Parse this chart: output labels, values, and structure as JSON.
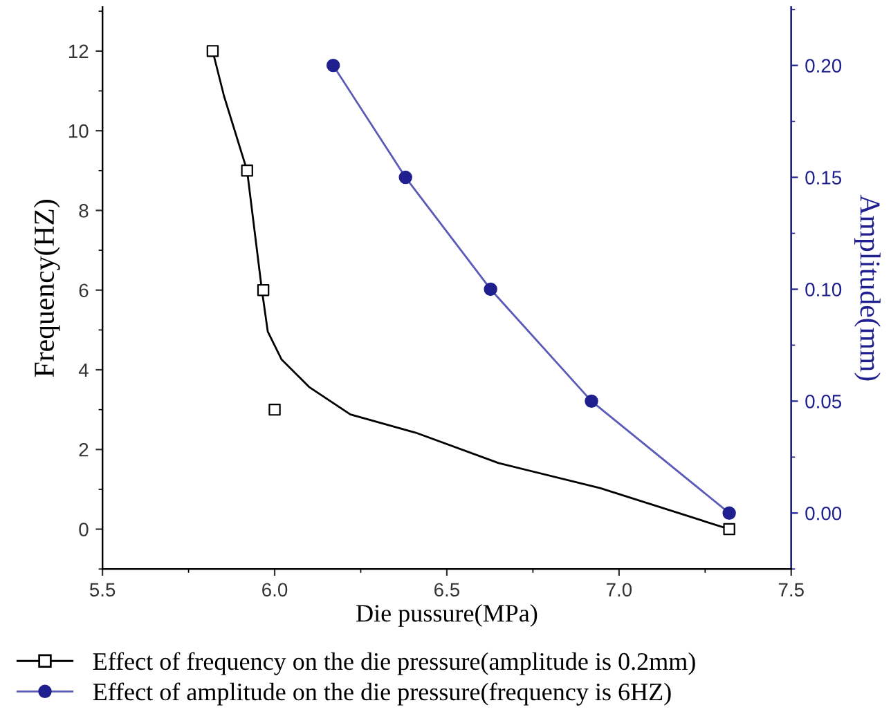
{
  "chart_data": {
    "type": "scatter",
    "xlabel": "Die pussure(MPa)",
    "ylabel": "Frequency(HZ)",
    "y2label": "Amplitude(mm)",
    "xlim": [
      5.5,
      7.5
    ],
    "xticks": [
      {
        "value": 5.5,
        "label": "5.5"
      },
      {
        "value": 6.0,
        "label": "6.0"
      },
      {
        "value": 6.5,
        "label": "6.5"
      },
      {
        "value": 7.0,
        "label": "7.0"
      },
      {
        "value": 7.5,
        "label": "7.5"
      }
    ],
    "ylim": [
      -1,
      13.1
    ],
    "yticks": [
      0,
      2,
      4,
      6,
      8,
      10,
      12
    ],
    "y2lim": [
      -0.025,
      0.226
    ],
    "y2ticks": [
      {
        "value": 0,
        "label": "0.00"
      },
      {
        "value": 0.05,
        "label": "0.05"
      },
      {
        "value": 0.1,
        "label": "0.10"
      },
      {
        "value": 0.15,
        "label": "0.15"
      },
      {
        "value": 0.2,
        "label": "0.20"
      }
    ],
    "legend": "bottom",
    "grid": false,
    "series": [
      {
        "name": "Effect of frequency on the die pressure(amplitude is 0.2mm)",
        "marker": "square",
        "color": "#000000",
        "x": [
          5.82,
          5.92,
          5.967,
          6.0,
          7.32
        ],
        "values": [
          12,
          9,
          6,
          3,
          0
        ]
      },
      {
        "type": "line",
        "marker": "none",
        "color": "#000000",
        "x": [
          5.82,
          5.853,
          5.92,
          5.963,
          5.98,
          6.02,
          6.1,
          6.22,
          6.41,
          6.65,
          6.945,
          7.32
        ],
        "values": [
          12,
          10.87,
          9,
          6,
          4.96,
          4.26,
          3.57,
          2.88,
          2.42,
          1.66,
          1.03,
          0
        ]
      },
      {
        "name": "Effect of amplitude on the die pressure(frequency is 6HZ)",
        "type": "line",
        "marker": "circle",
        "color": "#5a5ab8",
        "axis": "y2",
        "x": [
          6.17,
          6.38,
          6.627,
          6.92,
          7.32
        ],
        "values": [
          0.2,
          0.15,
          0.1,
          0.05,
          0
        ]
      }
    ]
  }
}
